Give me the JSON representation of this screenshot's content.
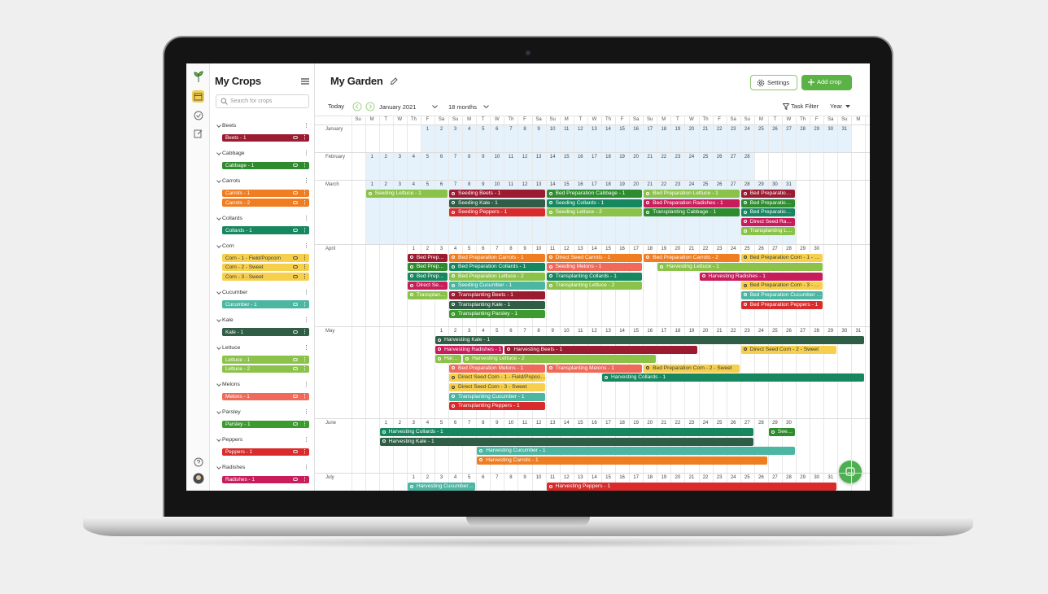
{
  "sidebar": {
    "title": "My Crops",
    "search_placeholder": "Search for crops",
    "groups": [
      {
        "name": "Beets",
        "crops": [
          {
            "label": "Beets - 1",
            "color": "#9b1b30"
          }
        ]
      },
      {
        "name": "Cabbage",
        "crops": [
          {
            "label": "Cabbage - 1",
            "color": "#2e8b2e"
          }
        ]
      },
      {
        "name": "Carrots",
        "crops": [
          {
            "label": "Carrots - 1",
            "color": "#ef7d22"
          },
          {
            "label": "Carrots - 2",
            "color": "#ef7d22"
          }
        ]
      },
      {
        "name": "Collards",
        "crops": [
          {
            "label": "Collards - 1",
            "color": "#16875f"
          }
        ]
      },
      {
        "name": "Corn",
        "crops": [
          {
            "label": "Corn - 1 - Field/Popcorn",
            "color": "#f6d04d"
          },
          {
            "label": "Corn - 2 - Sweet",
            "color": "#f6d04d"
          },
          {
            "label": "Corn - 3 - Sweet",
            "color": "#f6d04d"
          }
        ]
      },
      {
        "name": "Cucumber",
        "crops": [
          {
            "label": "Cucumber - 1",
            "color": "#4db6a3"
          }
        ]
      },
      {
        "name": "Kale",
        "crops": [
          {
            "label": "Kale - 1",
            "color": "#2f5d45"
          }
        ]
      },
      {
        "name": "Lettuce",
        "crops": [
          {
            "label": "Lettuce - 1",
            "color": "#8bc34a"
          },
          {
            "label": "Lettuce - 2",
            "color": "#8bc34a"
          }
        ]
      },
      {
        "name": "Melons",
        "crops": [
          {
            "label": "Melons - 1",
            "color": "#ef6a5b"
          }
        ]
      },
      {
        "name": "Parsley",
        "crops": [
          {
            "label": "Parsley - 1",
            "color": "#3c9a2f"
          }
        ]
      },
      {
        "name": "Peppers",
        "crops": [
          {
            "label": "Peppers - 1",
            "color": "#d92b2b"
          }
        ]
      },
      {
        "name": "Radishes",
        "crops": [
          {
            "label": "Radishes - 1",
            "color": "#c81d5a"
          }
        ]
      }
    ]
  },
  "header": {
    "title": "My Garden",
    "settings_button": "Settings",
    "add_button": "Add crop"
  },
  "toolbar": {
    "today": "Today",
    "month": "January 2021",
    "range": "18 months",
    "filter": "Task Filter",
    "view": "Year"
  },
  "calendar": {
    "weekdays": [
      "Su",
      "M",
      "T",
      "W",
      "Th",
      "F",
      "Sa"
    ],
    "days": [
      1,
      2,
      3,
      4,
      5,
      6,
      7,
      8,
      9,
      10,
      11,
      12,
      13,
      14,
      15,
      16,
      17,
      18,
      19,
      20,
      21,
      22,
      23,
      24,
      25,
      26,
      27,
      28,
      29,
      30,
      31
    ],
    "months": [
      {
        "name": "January",
        "first_weekday": 5,
        "length": 31,
        "shaded": true,
        "tasks": []
      },
      {
        "name": "February",
        "first_weekday": 1,
        "length": 28,
        "shaded": true,
        "tasks": []
      },
      {
        "name": "March",
        "first_weekday": 1,
        "length": 31,
        "shaded": true,
        "tasks": [
          {
            "label": "Seeding Lettuce - 1",
            "color": "#8bc34a",
            "start": 1,
            "end": 6,
            "row": 0
          },
          {
            "label": "Seeding Beets - 1",
            "color": "#9b1b30",
            "start": 7,
            "end": 13,
            "row": 0
          },
          {
            "label": "Seeding Kale - 1",
            "color": "#2f5d45",
            "start": 7,
            "end": 13,
            "row": 1
          },
          {
            "label": "Seeding Peppers - 1",
            "color": "#d92b2b",
            "start": 7,
            "end": 13,
            "row": 2
          },
          {
            "label": "Bed Preparation Cabbage - 1",
            "color": "#2e8b2e",
            "start": 14,
            "end": 20,
            "row": 0
          },
          {
            "label": "Seeding Collards - 1",
            "color": "#16875f",
            "start": 14,
            "end": 20,
            "row": 1
          },
          {
            "label": "Seeding Lettuce - 2",
            "color": "#8bc34a",
            "start": 14,
            "end": 20,
            "row": 2
          },
          {
            "label": "Bed Preparation Lettuce - 1",
            "color": "#8bc34a",
            "start": 21,
            "end": 27,
            "row": 0
          },
          {
            "label": "Bed Preparation Radishes - 1",
            "color": "#c81d5a",
            "start": 21,
            "end": 27,
            "row": 1
          },
          {
            "label": "Transplanting Cabbage - 1",
            "color": "#2e8b2e",
            "start": 21,
            "end": 27,
            "row": 2
          },
          {
            "label": "Bed Preparatio…",
            "color": "#9b1b30",
            "start": 28,
            "end": 31,
            "row": 0
          },
          {
            "label": "Bed Preparatio…",
            "color": "#2e8b2e",
            "start": 28,
            "end": 31,
            "row": 1
          },
          {
            "label": "Bed Preparatio…",
            "color": "#16875f",
            "start": 28,
            "end": 31,
            "row": 2
          },
          {
            "label": "Direct Seed Ra…",
            "color": "#c81d5a",
            "start": 28,
            "end": 31,
            "row": 3
          },
          {
            "label": "Transplanting L…",
            "color": "#8bc34a",
            "start": 28,
            "end": 31,
            "row": 4
          }
        ]
      },
      {
        "name": "April",
        "first_weekday": 4,
        "length": 30,
        "shaded": false,
        "tasks": [
          {
            "label": "Bed Prep…",
            "color": "#9b1b30",
            "start": 1,
            "end": 3,
            "row": 0
          },
          {
            "label": "Bed Prep…",
            "color": "#2e8b2e",
            "start": 1,
            "end": 3,
            "row": 1
          },
          {
            "label": "Bed Prep…",
            "color": "#16875f",
            "start": 1,
            "end": 3,
            "row": 2
          },
          {
            "label": "Direct Se…",
            "color": "#c81d5a",
            "start": 1,
            "end": 3,
            "row": 3
          },
          {
            "label": "Transplan…",
            "color": "#8bc34a",
            "start": 1,
            "end": 3,
            "row": 4
          },
          {
            "label": "Bed Preparation Carrots - 1",
            "color": "#ef7d22",
            "start": 4,
            "end": 10,
            "row": 0
          },
          {
            "label": "Bed Preparation Collards - 1",
            "color": "#16875f",
            "start": 4,
            "end": 10,
            "row": 1
          },
          {
            "label": "Bed Preparation Lettuce - 2",
            "color": "#8bc34a",
            "start": 4,
            "end": 10,
            "row": 2
          },
          {
            "label": "Seeding Cucumber - 1",
            "color": "#4db6a3",
            "start": 4,
            "end": 10,
            "row": 3
          },
          {
            "label": "Transplanting Beets - 1",
            "color": "#9b1b30",
            "start": 4,
            "end": 10,
            "row": 4
          },
          {
            "label": "Transplanting Kale - 1",
            "color": "#2f5d45",
            "start": 4,
            "end": 10,
            "row": 5
          },
          {
            "label": "Transplanting Parsley - 1",
            "color": "#3c9a2f",
            "start": 4,
            "end": 10,
            "row": 6
          },
          {
            "label": "Direct Seed Carrots - 1",
            "color": "#ef7d22",
            "start": 11,
            "end": 17,
            "row": 0
          },
          {
            "label": "Seeding Melons - 1",
            "color": "#ef6a5b",
            "start": 11,
            "end": 17,
            "row": 1
          },
          {
            "label": "Transplanting Collards - 1",
            "color": "#16875f",
            "start": 11,
            "end": 17,
            "row": 2
          },
          {
            "label": "Transplanting Lettuce - 2",
            "color": "#8bc34a",
            "start": 11,
            "end": 17,
            "row": 3
          },
          {
            "label": "Bed Preparation Carrots - 2",
            "color": "#ef7d22",
            "start": 18,
            "end": 24,
            "row": 0
          },
          {
            "label": "Harvesting Lettuce - 1",
            "color": "#8bc34a",
            "start": 19,
            "end": 30,
            "row": 1
          },
          {
            "label": "Harvesting Radishes - 1",
            "color": "#c81d5a",
            "start": 22,
            "end": 30,
            "row": 2
          },
          {
            "label": "Bed Preparation Corn - 1 - …",
            "color": "#f6d04d",
            "start": 25,
            "end": 30,
            "row": 0
          },
          {
            "label": "Bed Preparation Corn - 3 - …",
            "color": "#f6d04d",
            "start": 25,
            "end": 30,
            "row": 3
          },
          {
            "label": "Bed Preparation Cucumber …",
            "color": "#4db6a3",
            "start": 25,
            "end": 30,
            "row": 4
          },
          {
            "label": "Bed Preparation Peppers - 1",
            "color": "#d92b2b",
            "start": 25,
            "end": 30,
            "row": 5
          }
        ]
      },
      {
        "name": "May",
        "first_weekday": 6,
        "length": 31,
        "shaded": false,
        "tasks": [
          {
            "label": "Harvesting Kale - 1",
            "color": "#2f5d45",
            "start": 1,
            "end": 31,
            "row": 0
          },
          {
            "label": "Harvesting Radishes - 1",
            "color": "#c81d5a",
            "start": 1,
            "end": 5,
            "row": 1
          },
          {
            "label": "Harvesting Beets - 1",
            "color": "#9b1b30",
            "start": 6,
            "end": 19,
            "row": 1
          },
          {
            "label": "Direct Seed Corn - 2 - Sweet",
            "color": "#f6d04d",
            "start": 23,
            "end": 29,
            "row": 1
          },
          {
            "label": "Har…",
            "color": "#8bc34a",
            "start": 1,
            "end": 2,
            "row": 2
          },
          {
            "label": "Harvesting Lettuce - 2",
            "color": "#8bc34a",
            "start": 3,
            "end": 16,
            "row": 2
          },
          {
            "label": "Bed Preparation Melons - 1",
            "color": "#ef6a5b",
            "start": 2,
            "end": 8,
            "row": 3
          },
          {
            "label": "Transplanting Melons - 1",
            "color": "#ef6a5b",
            "start": 9,
            "end": 15,
            "row": 3
          },
          {
            "label": "Bed Preparation Corn - 2 - Sweet",
            "color": "#f6d04d",
            "start": 16,
            "end": 22,
            "row": 3
          },
          {
            "label": "Direct Seed Corn - 1 - Field/Popco…",
            "color": "#f6d04d",
            "start": 2,
            "end": 8,
            "row": 4
          },
          {
            "label": "Harvesting Collards - 1",
            "color": "#16875f",
            "start": 13,
            "end": 31,
            "row": 4
          },
          {
            "label": "Direct Seed Corn - 3 - Sweet",
            "color": "#f6d04d",
            "start": 2,
            "end": 8,
            "row": 5
          },
          {
            "label": "Transplanting Cucumber - 1",
            "color": "#4db6a3",
            "start": 2,
            "end": 8,
            "row": 6
          },
          {
            "label": "Transplanting Peppers - 1",
            "color": "#d92b2b",
            "start": 2,
            "end": 8,
            "row": 7
          }
        ]
      },
      {
        "name": "June",
        "first_weekday": 2,
        "length": 30,
        "shaded": false,
        "tasks": [
          {
            "label": "Harvesting Collards - 1",
            "color": "#16875f",
            "start": 1,
            "end": 27,
            "row": 0
          },
          {
            "label": "See…",
            "color": "#2e8b2e",
            "start": 29,
            "end": 30,
            "row": 0
          },
          {
            "label": "Harvesting Kale - 1",
            "color": "#2f5d45",
            "start": 1,
            "end": 27,
            "row": 1
          },
          {
            "label": "Harvesting Cucumber - 1",
            "color": "#4db6a3",
            "start": 8,
            "end": 30,
            "row": 2
          },
          {
            "label": "Harvesting Carrots - 1",
            "color": "#ef7d22",
            "start": 8,
            "end": 28,
            "row": 3
          }
        ]
      },
      {
        "name": "July",
        "first_weekday": 4,
        "length": 31,
        "shaded": false,
        "tasks": [
          {
            "label": "Harvesting Cucumber…",
            "color": "#4db6a3",
            "start": 1,
            "end": 5,
            "row": 0
          },
          {
            "label": "Harvesting Peppers - 1",
            "color": "#d92b2b",
            "start": 11,
            "end": 31,
            "row": 0
          }
        ]
      }
    ]
  }
}
